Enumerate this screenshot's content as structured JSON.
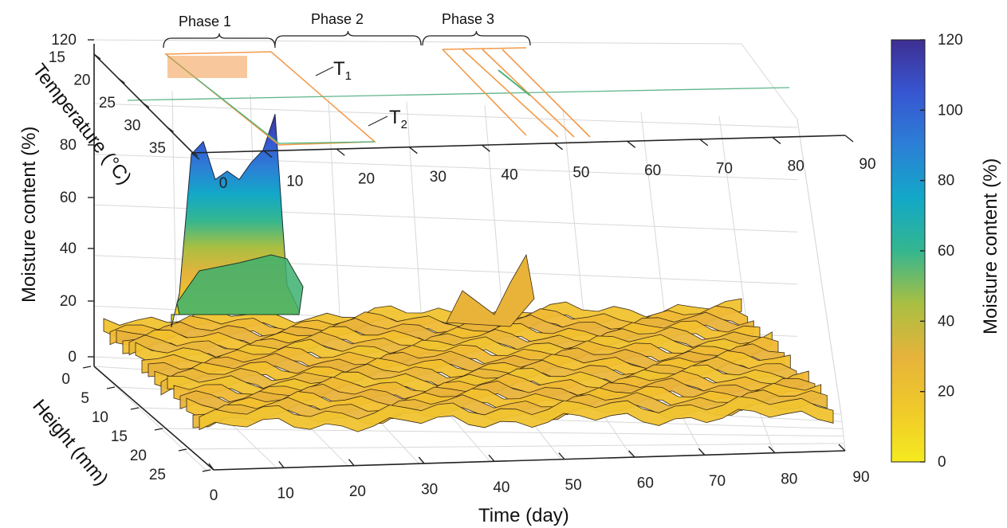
{
  "chart_data": {
    "type": "surface3d",
    "phases": [
      "Phase 1",
      "Phase 2",
      "Phase 3"
    ],
    "series_labels": {
      "t1": "T",
      "t1_sub": "1",
      "t2": "T",
      "t2_sub": "2"
    },
    "x_axis": {
      "label": "Time (day)",
      "range": [
        0,
        90
      ],
      "ticks": [
        "0",
        "10",
        "20",
        "30",
        "40",
        "50",
        "60",
        "70",
        "80",
        "90"
      ]
    },
    "y_axis": {
      "label": "Height (mm)",
      "range": [
        0,
        25
      ],
      "ticks": [
        "0",
        "5",
        "10",
        "15",
        "20",
        "25"
      ]
    },
    "z_axis": {
      "label": "Moisture content (%)",
      "range": [
        0,
        120
      ],
      "ticks": [
        "0",
        "20",
        "40",
        "60",
        "80",
        "120"
      ]
    },
    "temperature_axis": {
      "label": "Temperature (°C)",
      "range": [
        15,
        35
      ],
      "ticks": [
        "15",
        "20",
        "25",
        "30",
        "35"
      ]
    },
    "colorbar": {
      "label": "Moisture content (%)",
      "range": [
        0,
        120
      ],
      "ticks": [
        "0",
        "20",
        "40",
        "60",
        "80",
        "100",
        "120"
      ],
      "colors": [
        "#f5ea1f",
        "#f0c92a",
        "#e6b33b",
        "#a9bf42",
        "#34b68f",
        "#12a8c8",
        "#2c7fd6",
        "#3756d1",
        "#3e2f93"
      ]
    },
    "upper_x_ticks": [
      "0",
      "10",
      "20",
      "30",
      "40",
      "50",
      "60",
      "70",
      "80",
      "90"
    ],
    "moisture_profile": {
      "time": [
        0,
        2,
        4,
        6,
        8,
        10,
        12,
        14,
        16,
        18,
        20,
        24,
        28,
        32,
        36,
        40,
        44,
        48,
        52,
        56,
        60,
        64,
        68,
        72,
        76,
        80,
        84,
        88
      ],
      "peak_values": [
        14,
        18,
        96,
        102,
        84,
        88,
        98,
        115,
        34,
        26,
        22,
        20,
        19,
        21,
        26,
        24,
        28,
        36,
        20,
        18,
        19,
        18,
        17,
        17,
        18,
        17,
        16,
        15
      ]
    }
  }
}
